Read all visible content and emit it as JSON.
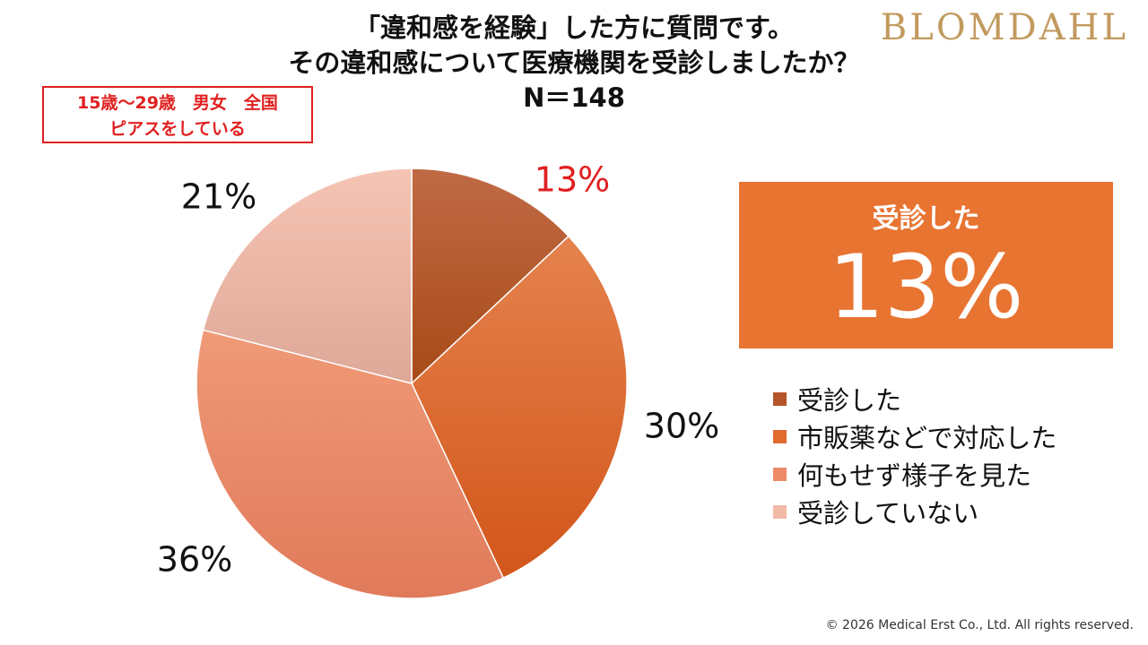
{
  "title": {
    "line1": "「違和感を経験」した方に質問です。",
    "line2": "その違和感について医療機関を受診しましたか？",
    "line3": "N＝148"
  },
  "brand": "BLOMDAHL",
  "target": {
    "line1": "15歳～29歳　男女　全国",
    "line2": "ピアスをしている"
  },
  "highlight": {
    "caption": "受診した",
    "value": "13%",
    "color": "#e87432"
  },
  "chart_data": {
    "type": "pie",
    "n": 148,
    "slices": [
      {
        "name": "受診した",
        "value": 13,
        "label": "13%",
        "color_top": "#c06a45",
        "color_bottom": "#a84a18",
        "label_color": "#e02020"
      },
      {
        "name": "市販薬などで対応した",
        "value": 30,
        "label": "30%",
        "color_top": "#e5824e",
        "color_bottom": "#d2561a",
        "label_color": "#111111"
      },
      {
        "name": "何もせず様子を見た",
        "value": 36,
        "label": "36%",
        "color_top": "#f09a78",
        "color_bottom": "#e07a5a",
        "label_color": "#111111"
      },
      {
        "name": "受診していない",
        "value": 21,
        "label": "21%",
        "color_top": "#f6c4b4",
        "color_bottom": "#dea898",
        "label_color": "#111111"
      }
    ],
    "start_angle_deg": 0,
    "direction": "clockwise"
  },
  "legend": [
    {
      "label": "受診した",
      "color": "#b4552a"
    },
    {
      "label": "市販薬などで対応した",
      "color": "#e06a30"
    },
    {
      "label": "何もせず様子を見た",
      "color": "#ec8a68"
    },
    {
      "label": "受診していない",
      "color": "#f2baa8"
    }
  ],
  "copyright": "© 2026 Medical Erst Co., Ltd. All rights reserved."
}
